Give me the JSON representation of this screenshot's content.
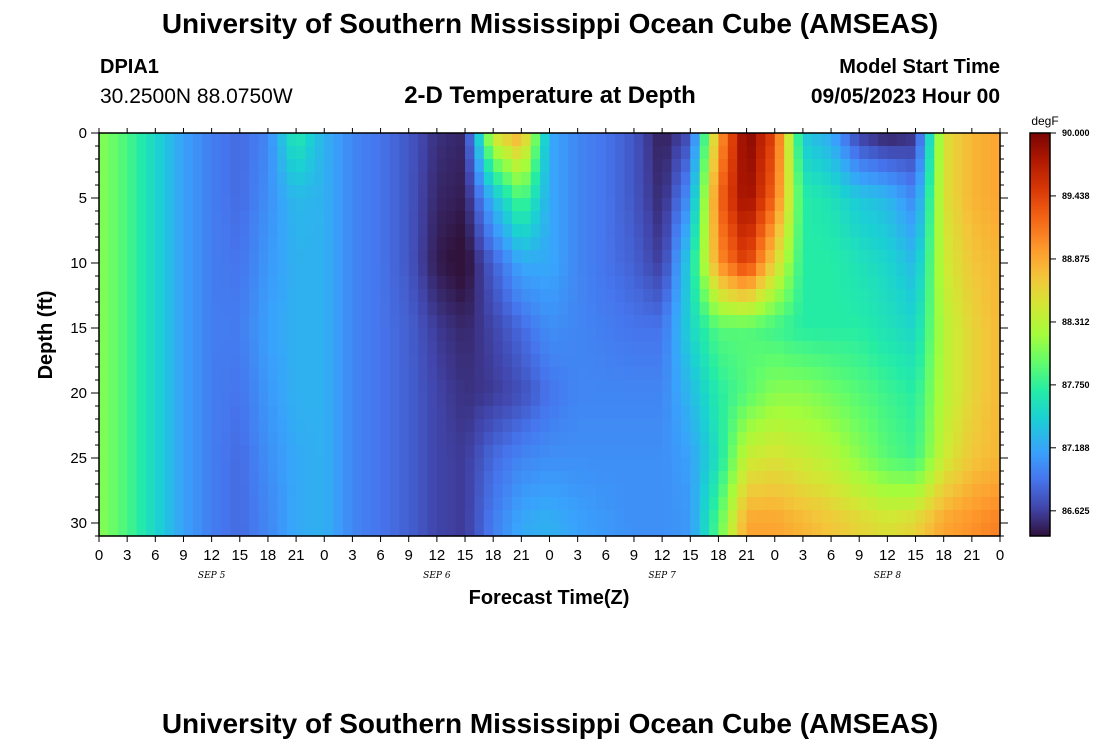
{
  "header": {
    "title": "University of Southern Mississippi Ocean Cube (AMSEAS)",
    "station_id": "DPIA1",
    "station_coords": "30.2500N  88.0750W",
    "plot_title": "2-D Temperature at Depth",
    "model_start_label": "Model Start Time",
    "model_start_value": "09/05/2023 Hour 00"
  },
  "footer": {
    "title": "University of Southern Mississippi Ocean Cube (AMSEAS)"
  },
  "chart_data": {
    "type": "heatmap",
    "xlabel": "Forecast Time(Z)",
    "ylabel": "Depth (ft)",
    "x_range_hours": [
      0,
      96
    ],
    "x_tick_step_hours": 3,
    "x_tick_labels": [
      "0",
      "3",
      "6",
      "9",
      "12",
      "15",
      "18",
      "21",
      "0",
      "3",
      "6",
      "9",
      "12",
      "15",
      "18",
      "21",
      "0",
      "3",
      "6",
      "9",
      "12",
      "15",
      "18",
      "21",
      "0",
      "3",
      "6",
      "9",
      "12",
      "15",
      "18",
      "21",
      "0"
    ],
    "day_labels": [
      {
        "label": "SEP 5",
        "hour": 12
      },
      {
        "label": "SEP 6",
        "hour": 36
      },
      {
        "label": "SEP 7",
        "hour": 60
      },
      {
        "label": "SEP 8",
        "hour": 84
      }
    ],
    "y_range_ft": [
      0,
      31
    ],
    "y_ticks": [
      0,
      5,
      10,
      15,
      20,
      25,
      30
    ],
    "colorbar": {
      "unit": "degF",
      "min": 86.4,
      "max": 90.0,
      "tick_labels": [
        "90.000",
        "89.438",
        "88.875",
        "88.312",
        "87.750",
        "87.188",
        "86.625"
      ],
      "tick_values": [
        90.0,
        89.438,
        88.875,
        88.312,
        87.75,
        87.188,
        86.625
      ]
    },
    "depth_rows_ft": [
      0,
      5,
      10,
      15,
      20,
      25,
      30
    ],
    "time_columns_hours": [
      0,
      3,
      6,
      9,
      12,
      15,
      18,
      21,
      24,
      27,
      30,
      33,
      36,
      39,
      42,
      45,
      48,
      51,
      54,
      57,
      60,
      63,
      66,
      69,
      72,
      75,
      78,
      81,
      84,
      87,
      90,
      93,
      96
    ],
    "temperature_degF": [
      [
        88.1,
        87.85,
        87.5,
        87.15,
        86.95,
        86.85,
        87.0,
        87.7,
        87.25,
        87.0,
        86.9,
        86.75,
        86.55,
        86.5,
        88.5,
        88.9,
        87.2,
        87.0,
        86.9,
        86.75,
        86.45,
        86.7,
        88.9,
        90.0,
        89.4,
        87.4,
        87.2,
        86.6,
        86.45,
        86.55,
        88.5,
        88.8,
        88.9
      ],
      [
        88.1,
        87.85,
        87.5,
        87.15,
        86.95,
        86.85,
        87.05,
        87.3,
        87.25,
        87.0,
        86.9,
        86.75,
        86.5,
        86.45,
        87.3,
        87.9,
        87.2,
        87.0,
        86.9,
        86.75,
        86.5,
        87.1,
        89.2,
        89.9,
        89.2,
        87.7,
        87.6,
        87.4,
        87.3,
        87.0,
        88.5,
        88.8,
        88.9
      ],
      [
        88.1,
        87.85,
        87.5,
        87.15,
        86.95,
        86.9,
        87.1,
        87.25,
        87.25,
        87.0,
        86.9,
        86.75,
        86.45,
        86.35,
        86.8,
        87.2,
        87.2,
        87.0,
        86.9,
        86.8,
        86.6,
        87.5,
        89.0,
        89.5,
        88.6,
        87.7,
        87.7,
        87.6,
        87.5,
        87.3,
        88.4,
        88.7,
        88.8
      ],
      [
        88.1,
        87.85,
        87.5,
        87.15,
        86.95,
        86.95,
        87.15,
        87.25,
        87.25,
        87.0,
        86.9,
        86.8,
        86.6,
        86.5,
        86.65,
        86.85,
        87.05,
        87.0,
        86.95,
        86.9,
        86.9,
        87.5,
        87.9,
        87.9,
        87.8,
        87.7,
        87.7,
        87.7,
        87.6,
        87.5,
        88.3,
        88.6,
        88.8
      ],
      [
        88.1,
        87.85,
        87.5,
        87.15,
        86.95,
        86.9,
        87.1,
        87.25,
        87.25,
        87.0,
        86.9,
        86.8,
        86.65,
        86.55,
        86.6,
        86.7,
        86.9,
        87.0,
        87.0,
        87.0,
        87.0,
        87.3,
        87.7,
        87.9,
        88.1,
        88.1,
        88.0,
        87.9,
        87.8,
        87.7,
        88.3,
        88.6,
        88.8
      ],
      [
        88.1,
        87.85,
        87.5,
        87.15,
        86.95,
        86.85,
        87.05,
        87.2,
        87.25,
        87.0,
        86.9,
        86.8,
        86.65,
        86.6,
        86.85,
        87.0,
        87.05,
        87.05,
        87.05,
        87.05,
        87.05,
        87.15,
        87.6,
        88.4,
        88.5,
        88.4,
        88.3,
        88.1,
        87.9,
        87.8,
        88.4,
        88.7,
        88.8
      ],
      [
        88.1,
        87.85,
        87.5,
        87.15,
        86.95,
        86.85,
        87.0,
        87.2,
        87.25,
        87.0,
        86.9,
        86.8,
        86.65,
        86.6,
        86.95,
        87.2,
        87.25,
        87.15,
        87.1,
        87.05,
        87.05,
        87.1,
        87.9,
        88.9,
        88.9,
        88.8,
        88.7,
        88.6,
        88.5,
        88.6,
        88.9,
        89.0,
        89.1
      ]
    ]
  }
}
